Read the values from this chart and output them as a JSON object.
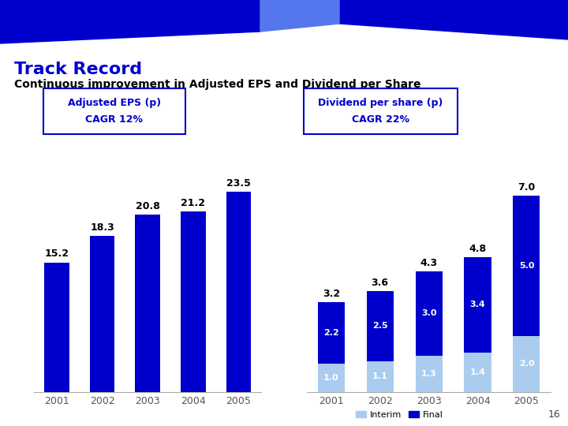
{
  "title": "Track Record",
  "subtitle": "Continuous improvement in Adjusted EPS and Dividend per Share",
  "background_color": "#ffffff",
  "eps_label": "Adjusted EPS (p)",
  "eps_cagr": "CAGR 12%",
  "eps_years": [
    "2001",
    "2002",
    "2003",
    "2004",
    "2005"
  ],
  "eps_values": [
    15.2,
    18.3,
    20.8,
    21.2,
    23.5
  ],
  "eps_bar_color": "#0000cc",
  "div_label": "Dividend per share (p)",
  "div_cagr": "CAGR 22%",
  "div_years": [
    "2001",
    "2002",
    "2003",
    "2004",
    "2005"
  ],
  "div_interim": [
    1.0,
    1.1,
    1.3,
    1.4,
    2.0
  ],
  "div_final": [
    2.2,
    2.5,
    3.0,
    3.4,
    5.0
  ],
  "div_interim_color": "#aaccee",
  "div_final_color": "#0000cc",
  "box_border_color": "#0000cc",
  "box_label_color": "#0000cc",
  "title_color": "#0000cc",
  "subtitle_color": "#000000",
  "bar_label_color": "#000000",
  "bar_label_inside_color": "#ffffff",
  "tick_color": "#555555",
  "page_number": "16",
  "header_dark_blue": "#0000cc",
  "header_light_blue": "#5577ee",
  "header_medium_blue": "#3355dd"
}
